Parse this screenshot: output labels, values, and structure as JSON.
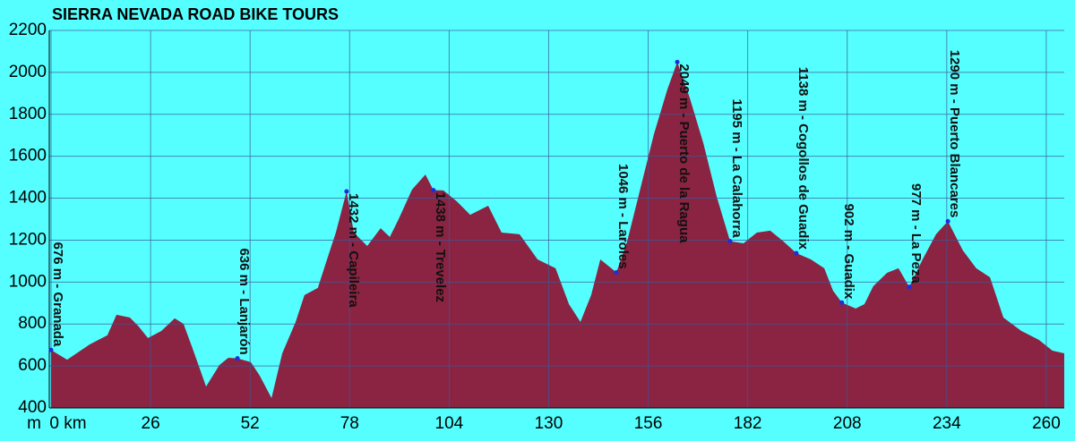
{
  "chart_data": {
    "type": "area",
    "title": "SIERRA NEVADA ROAD BIKE TOURS",
    "y_unit_label": "m",
    "x": [
      0,
      4.2,
      10.1,
      14.7,
      17.1,
      20.6,
      22.9,
      25.3,
      28.8,
      32.3,
      34.6,
      37.0,
      40.5,
      44.0,
      46.3,
      48.7,
      52.2,
      54.5,
      57.6,
      60.4,
      63.9,
      66.2,
      69.7,
      72.1,
      74.4,
      77.2,
      79.1,
      82.6,
      86.1,
      88.5,
      90.8,
      94.3,
      97.8,
      99.9,
      102.5,
      106.0,
      109.5,
      114.2,
      117.7,
      122.4,
      127.1,
      131.8,
      135.3,
      138.3,
      141.1,
      143.5,
      147.7,
      150.5,
      154.0,
      157.5,
      161.0,
      163.6,
      166.9,
      170.4,
      173.9,
      177.4,
      180.9,
      184.4,
      187.9,
      191.4,
      194.7,
      198.5,
      202.0,
      204.3,
      206.6,
      210.2,
      212.5,
      214.8,
      218.4,
      221.4,
      224.2,
      227.7,
      231.2,
      234.3,
      238.2,
      241.7,
      245.3,
      248.8,
      253.5,
      258.1,
      261.6,
      264.7
    ],
    "values": [
      676,
      630,
      703,
      746,
      844,
      831,
      788,
      733,
      767,
      827,
      801,
      682,
      502,
      605,
      639,
      636,
      618,
      554,
      447,
      660,
      810,
      938,
      972,
      1108,
      1236,
      1432,
      1236,
      1172,
      1257,
      1215,
      1300,
      1441,
      1513,
      1438,
      1437,
      1385,
      1321,
      1364,
      1236,
      1228,
      1108,
      1066,
      895,
      810,
      938,
      1108,
      1046,
      1193,
      1449,
      1705,
      1918,
      2049,
      1876,
      1663,
      1407,
      1195,
      1185,
      1236,
      1245,
      1193,
      1138,
      1108,
      1066,
      959,
      902,
      874,
      895,
      980,
      1044,
      1066,
      977,
      1108,
      1228,
      1290,
      1151,
      1066,
      1023,
      831,
      767,
      724,
      673,
      660
    ],
    "color": "#8b2342",
    "background": "#55ffff",
    "grid": true,
    "grid_color": "#3a5a9a",
    "xlim": [
      0,
      264.7
    ],
    "ylim": [
      400,
      2200
    ],
    "xticks": [
      {
        "value": 0,
        "label": "0 km"
      },
      26,
      52,
      78,
      104,
      130,
      156,
      182,
      208,
      234,
      260
    ],
    "yticks": [
      400,
      600,
      800,
      1000,
      1200,
      1400,
      1600,
      1800,
      2000,
      2200
    ],
    "annotations": [
      {
        "x": 0,
        "y": 676,
        "label": "676 m - Granada"
      },
      {
        "x": 48.7,
        "y": 636,
        "label": "636 m - Lanjarón"
      },
      {
        "x": 77.2,
        "y": 1432,
        "label": "1432 m - Capileira"
      },
      {
        "x": 99.9,
        "y": 1438,
        "label": "1438 m - Trevelez"
      },
      {
        "x": 147.7,
        "y": 1046,
        "label": "1046 m - Laroles"
      },
      {
        "x": 163.6,
        "y": 2049,
        "label": "2049 m - Puerto de la Ragua"
      },
      {
        "x": 177.4,
        "y": 1195,
        "label": "1195 m - La Calahorra"
      },
      {
        "x": 194.7,
        "y": 1138,
        "label": "1138 m - Cogollos de Guadix"
      },
      {
        "x": 206.6,
        "y": 902,
        "label": "902 m - Guadix"
      },
      {
        "x": 224.2,
        "y": 977,
        "label": "977 m - La Peza"
      },
      {
        "x": 234.3,
        "y": 1290,
        "label": "1290 m - Puerto Blancares"
      }
    ]
  }
}
